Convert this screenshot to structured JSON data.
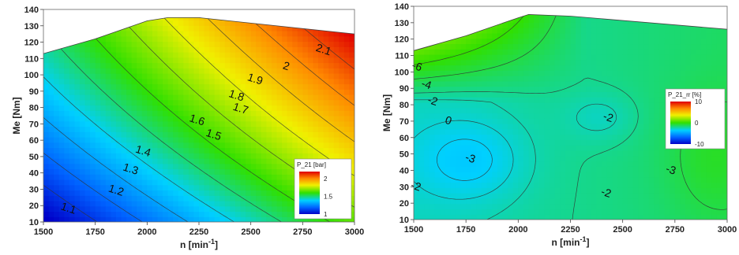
{
  "chart_data": [
    {
      "type": "heatmap",
      "subtype": "contour",
      "xlabel": "n [min",
      "xlabel_sup": "-1",
      "xlabel_end": "]",
      "ylabel": "Me [Nm]",
      "xlim": [
        1500,
        3000
      ],
      "ylim": [
        10,
        140
      ],
      "xticks": [
        "1500",
        "1750",
        "2000",
        "2250",
        "2500",
        "2750",
        "3000"
      ],
      "yticks": [
        "10",
        "20",
        "30",
        "40",
        "50",
        "60",
        "70",
        "80",
        "90",
        "100",
        "110",
        "120",
        "130",
        "140"
      ],
      "colorbar": {
        "title": "P_21 [bar]",
        "ticks": [
          "2",
          "1.5",
          "1"
        ],
        "min": 1,
        "max": 2.2,
        "colormap": "jet"
      },
      "boundary": [
        [
          1500,
          113
        ],
        [
          1750,
          122
        ],
        [
          2000,
          133
        ],
        [
          2100,
          135
        ],
        [
          2250,
          135
        ],
        [
          3000,
          125
        ]
      ],
      "contour_labels": [
        {
          "text": "1.1",
          "x": 1620,
          "y": 18
        },
        {
          "text": "1.2",
          "x": 1850,
          "y": 29
        },
        {
          "text": "1.3",
          "x": 1920,
          "y": 42
        },
        {
          "text": "1.4",
          "x": 1980,
          "y": 53
        },
        {
          "text": "1.5",
          "x": 2320,
          "y": 63
        },
        {
          "text": "1.6",
          "x": 2240,
          "y": 72
        },
        {
          "text": "1.7",
          "x": 2450,
          "y": 79
        },
        {
          "text": "1.8",
          "x": 2430,
          "y": 87
        },
        {
          "text": "1.9",
          "x": 2520,
          "y": 97
        },
        {
          "text": "2",
          "x": 2670,
          "y": 105
        },
        {
          "text": "2.1",
          "x": 2850,
          "y": 115
        }
      ]
    },
    {
      "type": "heatmap",
      "subtype": "contour",
      "xlabel": "n [min",
      "xlabel_sup": "-1",
      "xlabel_end": "]",
      "ylabel": "Me [Nm]",
      "xlim": [
        1500,
        3000
      ],
      "ylim": [
        10,
        140
      ],
      "xticks": [
        "1500",
        "1750",
        "2000",
        "2250",
        "2500",
        "2750",
        "3000"
      ],
      "yticks": [
        "10",
        "20",
        "30",
        "40",
        "50",
        "60",
        "70",
        "80",
        "90",
        "100",
        "110",
        "120",
        "130",
        "140"
      ],
      "colorbar": {
        "title": "P_21_rr [%]",
        "ticks": [
          "10",
          "0",
          "-10"
        ],
        "min": -10,
        "max": 10,
        "colormap": "jet"
      },
      "boundary": [
        [
          1500,
          113
        ],
        [
          1750,
          122
        ],
        [
          2000,
          133
        ],
        [
          2050,
          135
        ],
        [
          2250,
          134
        ],
        [
          3000,
          126
        ]
      ],
      "contour_labels": [
        {
          "text": "-6",
          "x": 1515,
          "y": 103
        },
        {
          "text": "-4",
          "x": 1560,
          "y": 92
        },
        {
          "text": "-2",
          "x": 1590,
          "y": 82
        },
        {
          "text": "0",
          "x": 1665,
          "y": 70
        },
        {
          "text": "-2",
          "x": 1510,
          "y": 30
        },
        {
          "text": "-3",
          "x": 1770,
          "y": 47
        },
        {
          "text": "-2",
          "x": 2430,
          "y": 72
        },
        {
          "text": "-2",
          "x": 2420,
          "y": 26
        },
        {
          "text": "-3",
          "x": 2730,
          "y": 40
        }
      ]
    }
  ]
}
